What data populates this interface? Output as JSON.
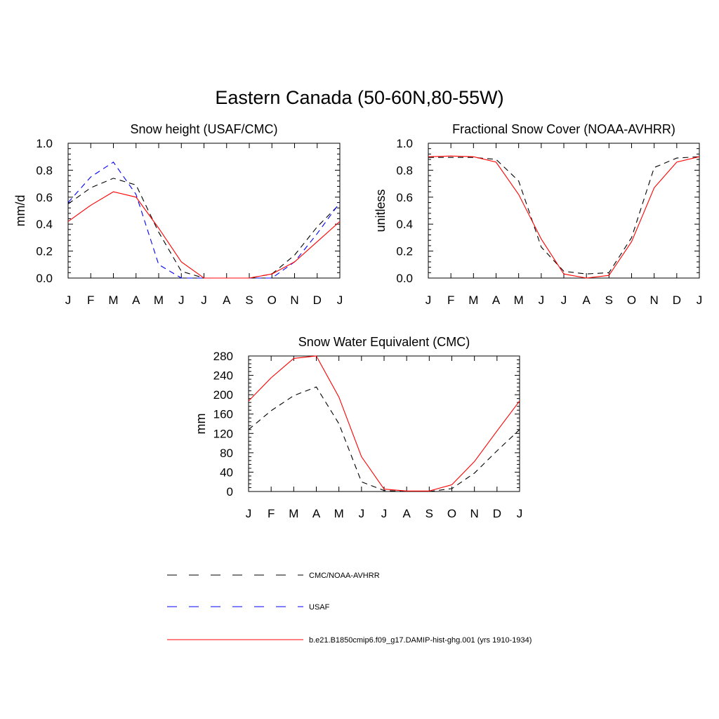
{
  "main_title": "Eastern Canada (50-60N,80-55W)",
  "series_styles": {
    "obs": {
      "color": "#000000",
      "dash": "8,6"
    },
    "usaf": {
      "color": "#0000ff",
      "dash": "8,6"
    },
    "model": {
      "color": "#ff0000",
      "dash": ""
    }
  },
  "legend": [
    {
      "key": "obs",
      "label": "CMC/NOAA-AVHRR"
    },
    {
      "key": "usaf",
      "label": "USAF"
    },
    {
      "key": "model",
      "label": "b.e21.B1850cmip6.f09_g17.DAMIP-hist-ghg.001 (yrs 1910-1934)"
    }
  ],
  "chart_data": [
    {
      "type": "line",
      "title": "Snow height (USAF/CMC)",
      "xlabel": "",
      "ylabel": "mm/d",
      "categories": [
        "J",
        "F",
        "M",
        "A",
        "M",
        "J",
        "J",
        "A",
        "S",
        "O",
        "N",
        "D",
        "J"
      ],
      "ylim": [
        0,
        1.0
      ],
      "yticks": [
        "0.0",
        "0.2",
        "0.4",
        "0.6",
        "0.8",
        "1.0"
      ],
      "series": [
        {
          "key": "obs",
          "values": [
            0.55,
            0.67,
            0.74,
            0.69,
            0.34,
            0.05,
            0.0,
            0.0,
            0.0,
            0.03,
            0.17,
            0.38,
            0.55
          ]
        },
        {
          "key": "usaf",
          "values": [
            0.56,
            0.75,
            0.86,
            0.62,
            0.1,
            0.0,
            0.0,
            0.0,
            0.0,
            0.0,
            0.12,
            0.33,
            0.56
          ]
        },
        {
          "key": "model",
          "values": [
            0.42,
            0.54,
            0.64,
            0.6,
            0.37,
            0.12,
            0.0,
            0.0,
            0.0,
            0.03,
            0.12,
            0.27,
            0.42
          ]
        }
      ]
    },
    {
      "type": "line",
      "title": "Fractional Snow Cover (NOAA-AVHRR)",
      "xlabel": "",
      "ylabel": "unitless",
      "categories": [
        "J",
        "F",
        "M",
        "A",
        "M",
        "J",
        "J",
        "A",
        "S",
        "O",
        "N",
        "D",
        "J"
      ],
      "ylim": [
        0,
        1.0
      ],
      "yticks": [
        "0.0",
        "0.2",
        "0.4",
        "0.6",
        "0.8",
        "1.0"
      ],
      "series": [
        {
          "key": "obs",
          "values": [
            0.895,
            0.895,
            0.895,
            0.88,
            0.72,
            0.23,
            0.05,
            0.03,
            0.04,
            0.3,
            0.82,
            0.89,
            0.9
          ]
        },
        {
          "key": "model",
          "values": [
            0.9,
            0.905,
            0.9,
            0.86,
            0.62,
            0.29,
            0.03,
            0.0,
            0.02,
            0.27,
            0.67,
            0.86,
            0.9
          ]
        }
      ]
    },
    {
      "type": "line",
      "title": "Snow Water Equivalent (CMC)",
      "xlabel": "",
      "ylabel": "mm",
      "categories": [
        "J",
        "F",
        "M",
        "A",
        "M",
        "J",
        "J",
        "A",
        "S",
        "O",
        "N",
        "D",
        "J"
      ],
      "ylim": [
        0,
        280
      ],
      "yticks": [
        "0",
        "40",
        "80",
        "120",
        "160",
        "200",
        "240",
        "280"
      ],
      "series": [
        {
          "key": "obs",
          "values": [
            128,
            167,
            198,
            216,
            140,
            20,
            2,
            0,
            0,
            6,
            38,
            84,
            128
          ]
        },
        {
          "key": "model",
          "values": [
            187,
            235,
            275,
            280,
            195,
            72,
            5,
            1,
            1,
            14,
            62,
            125,
            187
          ]
        }
      ]
    }
  ]
}
